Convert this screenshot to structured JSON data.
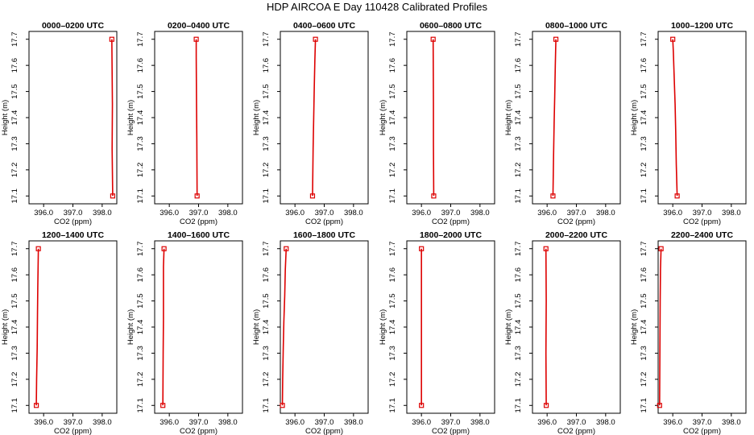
{
  "title": "HDP AIRCOA E  Day 110428  Calibrated Profiles",
  "colors": {
    "profile": "#dd0000",
    "frame": "#000000"
  },
  "chart_data": [
    {
      "type": "line",
      "title": "0000–0200 UTC",
      "xlabel": "CO2 (ppm)",
      "ylabel": "Height (m)",
      "xlim": [
        395.5,
        398.5
      ],
      "ylim": [
        17.07,
        17.73
      ],
      "xticks": [
        396.0,
        397.0,
        398.0
      ],
      "xtick_labels": [
        "396.0",
        "397.0",
        "398.0"
      ],
      "yticks": [
        17.1,
        17.2,
        17.3,
        17.4,
        17.5,
        17.6,
        17.7
      ],
      "series": [
        {
          "x": [
            398.36,
            398.34,
            398.35,
            398.33
          ],
          "y": [
            17.1,
            17.28,
            17.45,
            17.7
          ]
        }
      ],
      "markers": [
        {
          "x": 398.36,
          "y": 17.1
        },
        {
          "x": 398.33,
          "y": 17.7
        }
      ]
    },
    {
      "type": "line",
      "title": "0200–0400 UTC",
      "xlabel": "CO2 (ppm)",
      "ylabel": "Height (m)",
      "xlim": [
        395.5,
        398.5
      ],
      "ylim": [
        17.07,
        17.73
      ],
      "xticks": [
        396.0,
        397.0,
        398.0
      ],
      "xtick_labels": [
        "396.0",
        "397.0",
        "398.0"
      ],
      "yticks": [
        17.1,
        17.2,
        17.3,
        17.4,
        17.5,
        17.6,
        17.7
      ],
      "series": [
        {
          "x": [
            396.95,
            396.94,
            396.93,
            396.92,
            396.92
          ],
          "y": [
            17.1,
            17.32,
            17.45,
            17.63,
            17.7
          ]
        }
      ],
      "markers": [
        {
          "x": 396.95,
          "y": 17.1
        },
        {
          "x": 396.92,
          "y": 17.7
        }
      ]
    },
    {
      "type": "line",
      "title": "0400–0600 UTC",
      "xlabel": "CO2 (ppm)",
      "ylabel": "Height (m)",
      "xlim": [
        395.5,
        398.5
      ],
      "ylim": [
        17.07,
        17.73
      ],
      "xticks": [
        396.0,
        397.0,
        398.0
      ],
      "xtick_labels": [
        "396.0",
        "397.0",
        "398.0"
      ],
      "yticks": [
        17.1,
        17.2,
        17.3,
        17.4,
        17.5,
        17.6,
        17.7
      ],
      "series": [
        {
          "x": [
            396.6,
            396.62,
            396.64,
            396.66,
            396.68,
            396.7
          ],
          "y": [
            17.1,
            17.28,
            17.4,
            17.52,
            17.62,
            17.7
          ]
        }
      ],
      "markers": [
        {
          "x": 396.6,
          "y": 17.1
        },
        {
          "x": 396.7,
          "y": 17.7
        }
      ]
    },
    {
      "type": "line",
      "title": "0600–0800 UTC",
      "xlabel": "CO2 (ppm)",
      "ylabel": "Height (m)",
      "xlim": [
        395.5,
        398.5
      ],
      "ylim": [
        17.07,
        17.73
      ],
      "xticks": [
        396.0,
        397.0,
        398.0
      ],
      "xtick_labels": [
        "396.0",
        "397.0",
        "398.0"
      ],
      "yticks": [
        17.1,
        17.2,
        17.3,
        17.4,
        17.5,
        17.6,
        17.7
      ],
      "series": [
        {
          "x": [
            396.42,
            396.41,
            396.41,
            396.4
          ],
          "y": [
            17.1,
            17.3,
            17.45,
            17.7
          ]
        }
      ],
      "markers": [
        {
          "x": 396.42,
          "y": 17.1
        },
        {
          "x": 396.4,
          "y": 17.7
        }
      ]
    },
    {
      "type": "line",
      "title": "0800–1000 UTC",
      "xlabel": "CO2 (ppm)",
      "ylabel": "Height (m)",
      "xlim": [
        395.5,
        398.5
      ],
      "ylim": [
        17.07,
        17.73
      ],
      "xticks": [
        396.0,
        397.0,
        398.0
      ],
      "xtick_labels": [
        "396.0",
        "397.0",
        "398.0"
      ],
      "yticks": [
        17.1,
        17.2,
        17.3,
        17.4,
        17.5,
        17.6,
        17.7
      ],
      "series": [
        {
          "x": [
            396.2,
            396.22,
            396.24,
            396.26,
            396.28,
            396.3
          ],
          "y": [
            17.1,
            17.25,
            17.38,
            17.48,
            17.6,
            17.7
          ]
        }
      ],
      "markers": [
        {
          "x": 396.2,
          "y": 17.1
        },
        {
          "x": 396.3,
          "y": 17.7
        }
      ]
    },
    {
      "type": "line",
      "title": "1000–1200 UTC",
      "xlabel": "CO2 (ppm)",
      "ylabel": "Height (m)",
      "xlim": [
        395.5,
        398.5
      ],
      "ylim": [
        17.07,
        17.73
      ],
      "xticks": [
        396.0,
        397.0,
        398.0
      ],
      "xtick_labels": [
        "396.0",
        "397.0",
        "398.0"
      ],
      "yticks": [
        17.1,
        17.2,
        17.3,
        17.4,
        17.5,
        17.6,
        17.7
      ],
      "series": [
        {
          "x": [
            396.15,
            396.12,
            396.1,
            396.08,
            396.05,
            396.02,
            396.0
          ],
          "y": [
            17.1,
            17.22,
            17.35,
            17.45,
            17.55,
            17.65,
            17.7
          ]
        }
      ],
      "markers": [
        {
          "x": 396.15,
          "y": 17.1
        },
        {
          "x": 396.0,
          "y": 17.7
        }
      ]
    },
    {
      "type": "line",
      "title": "1200–1400 UTC",
      "xlabel": "CO2 (ppm)",
      "ylabel": "Height (m)",
      "xlim": [
        395.5,
        398.5
      ],
      "ylim": [
        17.07,
        17.73
      ],
      "xticks": [
        396.0,
        397.0,
        398.0
      ],
      "xtick_labels": [
        "396.0",
        "397.0",
        "398.0"
      ],
      "yticks": [
        17.1,
        17.2,
        17.3,
        17.4,
        17.5,
        17.6,
        17.7
      ],
      "series": [
        {
          "x": [
            395.75,
            395.76,
            395.78,
            395.79,
            395.8,
            395.82
          ],
          "y": [
            17.1,
            17.2,
            17.32,
            17.45,
            17.55,
            17.7
          ]
        }
      ],
      "markers": [
        {
          "x": 395.75,
          "y": 17.1
        },
        {
          "x": 395.82,
          "y": 17.7
        }
      ]
    },
    {
      "type": "line",
      "title": "1400–1600 UTC",
      "xlabel": "CO2 (ppm)",
      "ylabel": "Height (m)",
      "xlim": [
        395.5,
        398.5
      ],
      "ylim": [
        17.07,
        17.73
      ],
      "xticks": [
        396.0,
        397.0,
        398.0
      ],
      "xtick_labels": [
        "396.0",
        "397.0",
        "398.0"
      ],
      "yticks": [
        17.1,
        17.2,
        17.3,
        17.4,
        17.5,
        17.6,
        17.7
      ],
      "series": [
        {
          "x": [
            395.78,
            395.79,
            395.8,
            395.8,
            395.82
          ],
          "y": [
            17.1,
            17.3,
            17.43,
            17.63,
            17.7
          ]
        }
      ],
      "markers": [
        {
          "x": 395.78,
          "y": 17.1
        },
        {
          "x": 395.82,
          "y": 17.7
        }
      ]
    },
    {
      "type": "line",
      "title": "1600–1800 UTC",
      "xlabel": "CO2 (ppm)",
      "ylabel": "Height (m)",
      "xlim": [
        395.5,
        398.5
      ],
      "ylim": [
        17.07,
        17.73
      ],
      "xticks": [
        396.0,
        397.0,
        398.0
      ],
      "xtick_labels": [
        "396.0",
        "397.0",
        "398.0"
      ],
      "yticks": [
        17.1,
        17.2,
        17.3,
        17.4,
        17.5,
        17.6,
        17.7
      ],
      "series": [
        {
          "x": [
            395.57,
            395.58,
            395.6,
            395.62,
            395.65,
            395.67,
            395.7
          ],
          "y": [
            17.1,
            17.2,
            17.32,
            17.42,
            17.52,
            17.62,
            17.7
          ]
        }
      ],
      "markers": [
        {
          "x": 395.57,
          "y": 17.1
        },
        {
          "x": 395.7,
          "y": 17.7
        }
      ]
    },
    {
      "type": "line",
      "title": "1800–2000 UTC",
      "xlabel": "CO2 (ppm)",
      "ylabel": "Height (m)",
      "xlim": [
        395.5,
        398.5
      ],
      "ylim": [
        17.07,
        17.73
      ],
      "xticks": [
        396.0,
        397.0,
        398.0
      ],
      "xtick_labels": [
        "396.0",
        "397.0",
        "398.0"
      ],
      "yticks": [
        17.1,
        17.2,
        17.3,
        17.4,
        17.5,
        17.6,
        17.7
      ],
      "series": [
        {
          "x": [
            396.0,
            396.0
          ],
          "y": [
            17.1,
            17.7
          ]
        }
      ],
      "markers": [
        {
          "x": 396.0,
          "y": 17.1
        },
        {
          "x": 396.0,
          "y": 17.7
        }
      ]
    },
    {
      "type": "line",
      "title": "2000–2200 UTC",
      "xlabel": "CO2 (ppm)",
      "ylabel": "Height (m)",
      "xlim": [
        395.5,
        398.5
      ],
      "ylim": [
        17.07,
        17.73
      ],
      "xticks": [
        396.0,
        397.0,
        398.0
      ],
      "xtick_labels": [
        "396.0",
        "397.0",
        "398.0"
      ],
      "yticks": [
        17.1,
        17.2,
        17.3,
        17.4,
        17.5,
        17.6,
        17.7
      ],
      "series": [
        {
          "x": [
            395.97,
            395.96,
            395.97,
            395.96
          ],
          "y": [
            17.1,
            17.3,
            17.5,
            17.7
          ]
        }
      ],
      "markers": [
        {
          "x": 395.97,
          "y": 17.1
        },
        {
          "x": 395.96,
          "y": 17.7
        }
      ]
    },
    {
      "type": "line",
      "title": "2200–2400 UTC",
      "xlabel": "CO2 (ppm)",
      "ylabel": "Height (m)",
      "xlim": [
        395.5,
        398.5
      ],
      "ylim": [
        17.07,
        17.73
      ],
      "xticks": [
        396.0,
        397.0,
        398.0
      ],
      "xtick_labels": [
        "396.0",
        "397.0",
        "398.0"
      ],
      "yticks": [
        17.1,
        17.2,
        17.3,
        17.4,
        17.5,
        17.6,
        17.7
      ],
      "series": [
        {
          "x": [
            395.55,
            395.56,
            395.57,
            395.58,
            395.6
          ],
          "y": [
            17.1,
            17.3,
            17.5,
            17.62,
            17.7
          ]
        }
      ],
      "markers": [
        {
          "x": 395.55,
          "y": 17.1
        },
        {
          "x": 395.6,
          "y": 17.7
        }
      ]
    }
  ]
}
